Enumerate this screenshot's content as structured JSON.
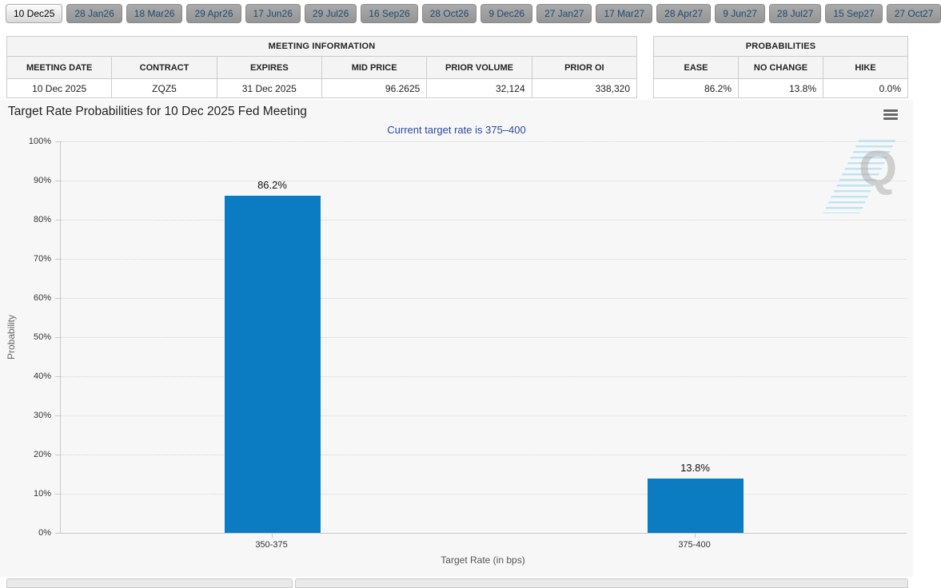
{
  "tabs": {
    "selected_index": 0,
    "items": [
      "10 Dec25",
      "28 Jan26",
      "18 Mar26",
      "29 Apr26",
      "17 Jun26",
      "29 Jul26",
      "16 Sep26",
      "28 Oct26",
      "9 Dec26",
      "27 Jan27",
      "17 Mar27",
      "28 Apr27",
      "9 Jun27",
      "28 Jul27",
      "15 Sep27",
      "27 Oct27"
    ]
  },
  "meeting_info": {
    "title": "MEETING INFORMATION",
    "columns": [
      "MEETING DATE",
      "CONTRACT",
      "EXPIRES",
      "MID PRICE",
      "PRIOR VOLUME",
      "PRIOR OI"
    ],
    "values": [
      "10 Dec 2025",
      "ZQZ5",
      "31 Dec 2025",
      "96.2625",
      "32,124",
      "338,320"
    ],
    "col_widths_pct": [
      20,
      14.8,
      17.1,
      13.7,
      20,
      14.4
    ],
    "col_aligns": [
      "c",
      "c",
      "c",
      "r",
      "r",
      "r"
    ]
  },
  "probabilities": {
    "title": "PROBABILITIES",
    "columns": [
      "EASE",
      "NO CHANGE",
      "HIKE"
    ],
    "values": [
      "86.2%",
      "13.8%",
      "0.0%"
    ],
    "col_widths_pct": [
      27,
      46,
      27
    ],
    "col_aligns": [
      "r",
      "r",
      "r"
    ]
  },
  "chart_data": {
    "type": "bar",
    "title": "Target Rate Probabilities for 10 Dec 2025 Fed Meeting",
    "subtitle": "Current target rate is 375–400",
    "categories": [
      "350-375",
      "375-400"
    ],
    "values": [
      86.2,
      13.8
    ],
    "data_labels": [
      "86.2%",
      "13.8%"
    ],
    "xlabel": "Target Rate (in bps)",
    "ylabel": "Probability",
    "ylim": [
      0,
      100
    ],
    "ytick_step": 10,
    "ytick_suffix": "%",
    "grid": "dotted horizontal",
    "legend": "none",
    "bar_color": "#0b7cc1",
    "subtitle_color": "#2a4b9b",
    "watermark_letter": "Q"
  },
  "icons": {
    "menu": "hamburger-icon"
  }
}
